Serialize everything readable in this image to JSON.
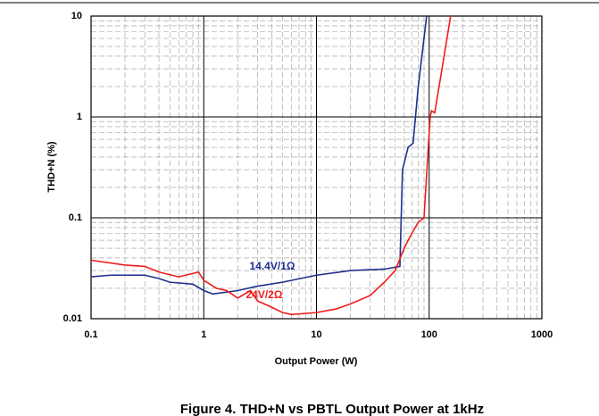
{
  "chart_data": {
    "type": "line",
    "title": "Figure 4.  THD+N vs PBTL Output Power at 1kHz",
    "xlabel": "Output Power (W)",
    "ylabel": "THD+N (%)",
    "xscale": "log",
    "yscale": "log",
    "grid": true,
    "minor_grid": true,
    "xlim": [
      0.1,
      1000
    ],
    "ylim": [
      0.01,
      10
    ],
    "xticks": [
      0.1,
      1,
      10,
      100,
      1000
    ],
    "yticks": [
      0.01,
      0.1,
      1,
      10
    ],
    "series": [
      {
        "name": "14.4V/1Ω",
        "color": "#1f2f8f",
        "x": [
          0.1,
          0.15,
          0.3,
          0.4,
          0.5,
          0.8,
          1,
          1.2,
          2,
          3,
          5,
          10,
          20,
          40,
          55,
          58,
          65,
          72,
          80,
          95
        ],
        "values": [
          0.026,
          0.027,
          0.027,
          0.025,
          0.023,
          0.022,
          0.019,
          0.0176,
          0.019,
          0.021,
          0.023,
          0.027,
          0.03,
          0.031,
          0.033,
          0.3,
          0.5,
          0.55,
          2,
          10
        ]
      },
      {
        "name": "24V/2Ω",
        "color": "#ee1c1c",
        "x": [
          0.1,
          0.2,
          0.3,
          0.4,
          0.6,
          0.9,
          1,
          1.3,
          1.6,
          2,
          2.6,
          3,
          4,
          5,
          6,
          10,
          15,
          20,
          30,
          40,
          50,
          60,
          70,
          80,
          90,
          102,
          105,
          112,
          130,
          155
        ],
        "values": [
          0.038,
          0.034,
          0.033,
          0.029,
          0.026,
          0.029,
          0.024,
          0.02,
          0.019,
          0.016,
          0.019,
          0.015,
          0.013,
          0.0115,
          0.011,
          0.0115,
          0.0125,
          0.014,
          0.017,
          0.023,
          0.03,
          0.05,
          0.07,
          0.09,
          0.1,
          1,
          1.15,
          1.1,
          3,
          10
        ]
      }
    ]
  }
}
